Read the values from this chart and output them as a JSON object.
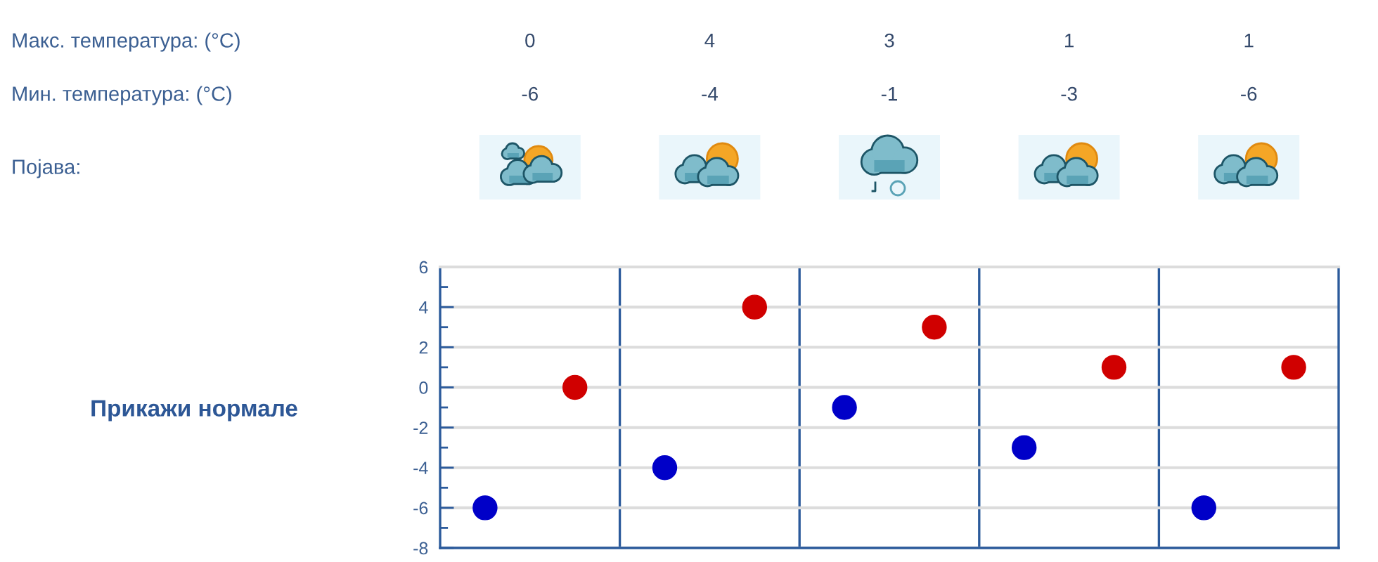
{
  "chart_data": {
    "type": "scatter",
    "categories": [
      null,
      null,
      null,
      null,
      null
    ],
    "series": [
      {
        "color": "#0000c8",
        "values": [
          -6,
          -4,
          -1,
          -3,
          -6
        ]
      },
      {
        "color": "#d00000",
        "values": [
          0,
          4,
          3,
          1,
          1
        ]
      }
    ],
    "ylim": [
      -8,
      6
    ],
    "yticks": [
      -8,
      -6,
      -4,
      -2,
      0,
      2,
      4,
      6
    ],
    "grid": true,
    "marker": "circle",
    "tick_labels": "y",
    "data_labels": true,
    "annotations": [
      "Макс. температура: (°C)",
      "Мин. температура: (°C)",
      "Појава:",
      "Прикажи нормале"
    ]
  }
}
